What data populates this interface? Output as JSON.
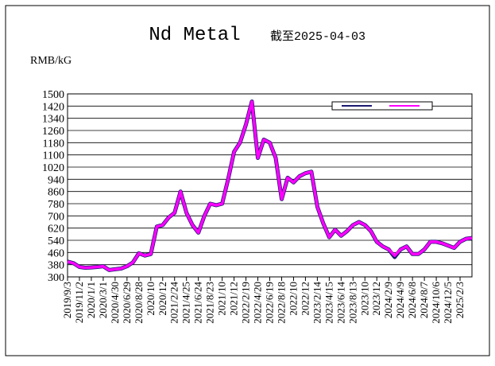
{
  "chart_data": {
    "type": "line",
    "title": "Nd Metal",
    "subtitle": "截至2025-04-03",
    "y_label": "RMB/kG",
    "categories": [
      "2019/9/3",
      null,
      "2019/11/2",
      null,
      "2020/1/1",
      null,
      "2020/3/1",
      null,
      "2020/4/30",
      null,
      "2020/6/29",
      null,
      "2020/8/28",
      null,
      "2020/10",
      null,
      "2020/12",
      null,
      "2021/2/24",
      null,
      "2021/4/25",
      null,
      "2021/6/24",
      null,
      "2021/8/23",
      null,
      "2021/10",
      null,
      "2021/12",
      null,
      "2022/2/19",
      null,
      "2022/4/20",
      null,
      "2022/6/19",
      null,
      "2022/8/18",
      null,
      "2022/10",
      null,
      "2022/12",
      null,
      "2023/2/14",
      null,
      "2023/4/15",
      null,
      "2023/6/14",
      null,
      "2023/8/13",
      null,
      "2023/10",
      null,
      "2023/12",
      null,
      "2024/2/9",
      null,
      "2024/4/9",
      null,
      "2024/6/8",
      null,
      "2024/8/7",
      null,
      "2024/10/6",
      null,
      "2024/12/5",
      null,
      "2025/2/3",
      null,
      null
    ],
    "series": [
      {
        "color": "#1a1a6e",
        "values": [
          400,
          390,
          365,
          360,
          362,
          365,
          370,
          345,
          350,
          355,
          370,
          395,
          455,
          440,
          450,
          630,
          640,
          690,
          720,
          860,
          720,
          640,
          590,
          700,
          780,
          770,
          780,
          940,
          1120,
          1180,
          1300,
          1450,
          1080,
          1200,
          1180,
          1080,
          810,
          950,
          920,
          960,
          980,
          990,
          760,
          650,
          560,
          610,
          570,
          600,
          640,
          660,
          640,
          600,
          530,
          500,
          480,
          430,
          480,
          500,
          450,
          450,
          480,
          530,
          530,
          520,
          505,
          490,
          530,
          550,
          555
        ]
      },
      {
        "color": "#ff00ff",
        "values": [
          400,
          390,
          365,
          360,
          362,
          365,
          370,
          345,
          350,
          355,
          370,
          395,
          455,
          440,
          450,
          630,
          640,
          690,
          720,
          860,
          720,
          640,
          590,
          700,
          780,
          770,
          780,
          940,
          1120,
          1180,
          1300,
          1450,
          1080,
          1200,
          1180,
          1080,
          810,
          950,
          920,
          960,
          980,
          990,
          760,
          650,
          560,
          610,
          570,
          600,
          640,
          660,
          640,
          600,
          530,
          500,
          480,
          440,
          480,
          500,
          450,
          450,
          480,
          530,
          530,
          520,
          505,
          490,
          530,
          550,
          555
        ]
      }
    ],
    "ylim": [
      300,
      1500
    ],
    "yticks": [
      300,
      380,
      460,
      540,
      620,
      700,
      780,
      860,
      940,
      1020,
      1100,
      1180,
      1260,
      1340,
      1420,
      1500
    ],
    "grid": true,
    "legend": "upper right"
  }
}
